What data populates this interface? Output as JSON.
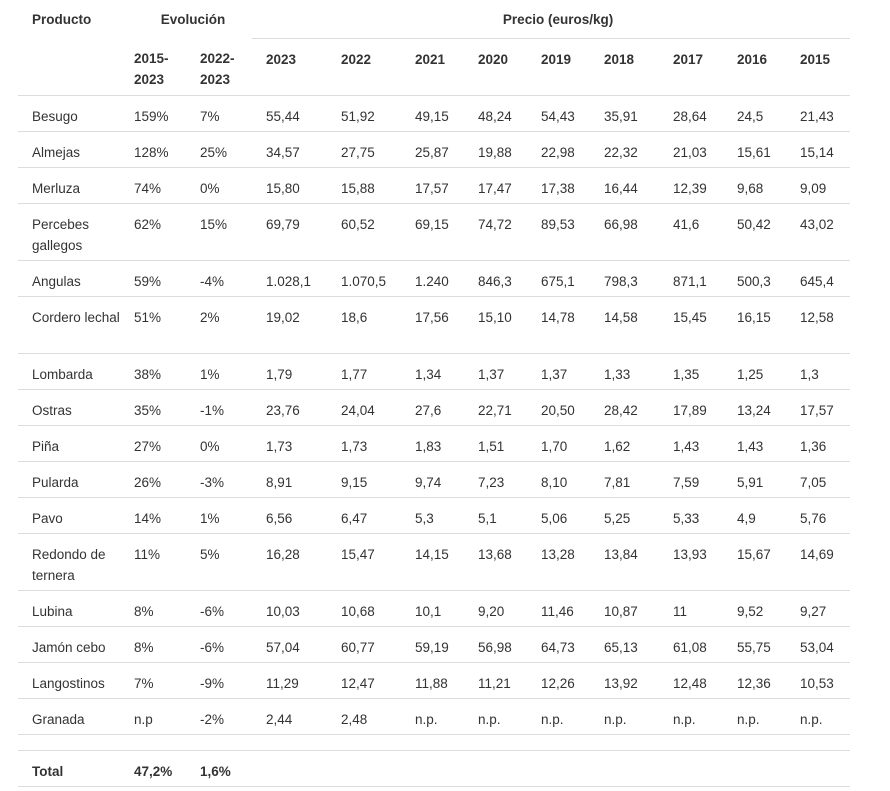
{
  "headers": {
    "product": "Producto",
    "evolution": "Evolución",
    "price": "Precio (euros/kg)",
    "evo_cols": [
      "2015-2023",
      "2022-2023"
    ],
    "years": [
      "2023",
      "2022",
      "2021",
      "2020",
      "2019",
      "2018",
      "2017",
      "2016",
      "2015"
    ]
  },
  "rows": [
    {
      "name": "Besugo",
      "evo": [
        "159%",
        "7%"
      ],
      "prices": [
        "55,44",
        "51,92",
        "49,15",
        "48,24",
        "54,43",
        "35,91",
        "28,64",
        "24,5",
        "21,43"
      ]
    },
    {
      "name": "Almejas",
      "evo": [
        "128%",
        "25%"
      ],
      "prices": [
        "34,57",
        "27,75",
        "25,87",
        "19,88",
        "22,98",
        "22,32",
        "21,03",
        "15,61",
        "15,14"
      ]
    },
    {
      "name": "Merluza",
      "evo": [
        "74%",
        "0%"
      ],
      "prices": [
        "15,80",
        "15,88",
        "17,57",
        "17,47",
        "17,38",
        "16,44",
        "12,39",
        "9,68",
        "9,09"
      ]
    },
    {
      "name": "Percebes gallegos",
      "evo": [
        "62%",
        "15%"
      ],
      "prices": [
        "69,79",
        "60,52",
        "69,15",
        "74,72",
        "89,53",
        "66,98",
        "41,6",
        "50,42",
        "43,02"
      ]
    },
    {
      "name": "Angulas",
      "evo": [
        "59%",
        "-4%"
      ],
      "prices": [
        "1.028,1",
        "1.070,5",
        "1.240",
        "846,3",
        "675,1",
        "798,3",
        "871,1",
        "500,3",
        "645,4"
      ]
    },
    {
      "name": "Cordero lechal",
      "evo": [
        "51%",
        "2%"
      ],
      "prices": [
        "19,02",
        "18,6",
        "17,56",
        "15,10",
        "14,78",
        "14,58",
        "15,45",
        "16,15",
        "12,58"
      ]
    },
    {
      "name": "Lombarda",
      "evo": [
        "38%",
        "1%"
      ],
      "prices": [
        "1,79",
        "1,77",
        "1,34",
        "1,37",
        "1,37",
        "1,33",
        "1,35",
        "1,25",
        "1,3"
      ]
    },
    {
      "name": "Ostras",
      "evo": [
        "35%",
        "-1%"
      ],
      "prices": [
        "23,76",
        "24,04",
        "27,6",
        "22,71",
        "20,50",
        "28,42",
        "17,89",
        "13,24",
        "17,57"
      ]
    },
    {
      "name": "Piña",
      "evo": [
        "27%",
        "0%"
      ],
      "prices": [
        "1,73",
        "1,73",
        "1,83",
        "1,51",
        "1,70",
        "1,62",
        "1,43",
        "1,43",
        "1,36"
      ]
    },
    {
      "name": "Pularda",
      "evo": [
        "26%",
        "-3%"
      ],
      "prices": [
        "8,91",
        "9,15",
        "9,74",
        "7,23",
        "8,10",
        "7,81",
        "7,59",
        "5,91",
        "7,05"
      ]
    },
    {
      "name": "Pavo",
      "evo": [
        "14%",
        "1%"
      ],
      "prices": [
        "6,56",
        "6,47",
        "5,3",
        "5,1",
        "5,06",
        "5,25",
        "5,33",
        "4,9",
        "5,76"
      ]
    },
    {
      "name": "Redondo de ternera",
      "evo": [
        "11%",
        "5%"
      ],
      "prices": [
        "16,28",
        "15,47",
        "14,15",
        "13,68",
        "13,28",
        "13,84",
        "13,93",
        "15,67",
        "14,69"
      ]
    },
    {
      "name": "Lubina",
      "evo": [
        "8%",
        "-6%"
      ],
      "prices": [
        "10,03",
        "10,68",
        "10,1",
        "9,20",
        "11,46",
        "10,87",
        "11",
        "9,52",
        "9,27"
      ]
    },
    {
      "name": "Jamón cebo",
      "evo": [
        "8%",
        "-6%"
      ],
      "prices": [
        "57,04",
        "60,77",
        "59,19",
        "56,98",
        "64,73",
        "65,13",
        "61,08",
        "55,75",
        "53,04"
      ]
    },
    {
      "name": "Langostinos",
      "evo": [
        "7%",
        "-9%"
      ],
      "prices": [
        "11,29",
        "12,47",
        "11,88",
        "11,21",
        "12,26",
        "13,92",
        "12,48",
        "12,36",
        "10,53"
      ]
    },
    {
      "name": "Granada",
      "evo": [
        "n.p",
        "-2%"
      ],
      "prices": [
        "2,44",
        "2,48",
        "n.p.",
        "n.p.",
        "n.p.",
        "n.p.",
        "n.p.",
        "n.p.",
        "n.p."
      ]
    }
  ],
  "total": {
    "label": "Total",
    "evo": [
      "47,2%",
      "1,6%"
    ]
  }
}
